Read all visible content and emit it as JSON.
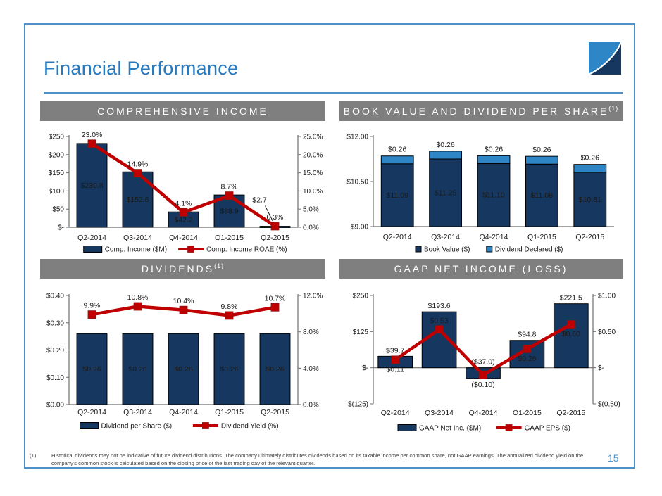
{
  "slide": {
    "title": "Financial Performance",
    "page_number": "15",
    "footnote_marker": "(1)",
    "footnote_text": "Historical dividends may not be indicative of future dividend distributions.  The company ultimately distributes dividends based on its taxable income per common share, not GAAP earnings. The annualized dividend yield on the company's common stock is calculated based on the closing price of the last trading day of the relevant quarter."
  },
  "colors": {
    "accent_blue": "#2879BE",
    "border_blue": "#4D91C8",
    "header_gray": "#7F7F7F",
    "navy": "#16375F",
    "light_blue": "#2E86C6",
    "red": "#C00000",
    "axis_gray": "#6e6e6e",
    "bar_label_white": "#F2F2F2"
  },
  "panels": [
    {
      "title": "COMPREHENSIVE INCOME",
      "superscript": ""
    },
    {
      "title": "BOOK VALUE AND DIVIDEND PER SHARE",
      "superscript": "(1)"
    },
    {
      "title": "DIVIDENDS",
      "superscript": "(1)"
    },
    {
      "title": "GAAP NET INCOME (LOSS)",
      "superscript": ""
    }
  ],
  "chart_data": [
    {
      "type": "bar-line",
      "title": "COMPREHENSIVE INCOME",
      "grid": false,
      "legend_position": "bottom",
      "categories": [
        "Q2-2014",
        "Q3-2014",
        "Q4-2014",
        "Q1-2015",
        "Q2-2015"
      ],
      "left_axis": {
        "min": 0,
        "max": 250,
        "ticks": [
          "$-",
          "$50",
          "$100",
          "$150",
          "$200",
          "$250"
        ]
      },
      "right_axis": {
        "min": 0,
        "max": 25,
        "ticks": [
          "0.0%",
          "5.0%",
          "10.0%",
          "15.0%",
          "20.0%",
          "25.0%"
        ]
      },
      "bars": {
        "name": "Comp. Income ($M)",
        "values": [
          230.8,
          152.6,
          42.2,
          88.9,
          2.7
        ],
        "labels": [
          "$230.8",
          "$152.6",
          "$42.2",
          "$88.9",
          "$2.7"
        ],
        "label_pos": [
          "inside",
          "inside",
          "inside",
          "inside",
          "callout"
        ]
      },
      "line": {
        "name": "Comp. Income ROAE (%)",
        "values": [
          23.0,
          14.9,
          4.1,
          8.7,
          0.3
        ],
        "labels": [
          "23.0%",
          "14.9%",
          "4.1%",
          "8.7%",
          "0.3%"
        ],
        "label_pos": [
          "above",
          "above",
          "above",
          "above",
          "above"
        ]
      }
    },
    {
      "type": "stacked-bar",
      "title": "BOOK VALUE AND DIVIDEND PER SHARE (1)",
      "grid": false,
      "legend_position": "bottom",
      "categories": [
        "Q2-2014",
        "Q3-2014",
        "Q4-2014",
        "Q1-2015",
        "Q2-2015"
      ],
      "left_axis": {
        "min": 9,
        "max": 12,
        "ticks": [
          "$9.00",
          "$10.50",
          "$12.00"
        ]
      },
      "stacks": [
        {
          "name": "Book Value ($)",
          "color_key": "navy",
          "values": [
            11.09,
            11.25,
            11.1,
            11.08,
            10.81
          ],
          "labels": [
            "$11.09",
            "$11.25",
            "$11.10",
            "$11.08",
            "$10.81"
          ],
          "label_pos": "inside"
        },
        {
          "name": "Dividend Declared ($)",
          "color_key": "light_blue",
          "values": [
            0.26,
            0.26,
            0.26,
            0.26,
            0.26
          ],
          "labels": [
            "$0.26",
            "$0.26",
            "$0.26",
            "$0.26",
            "$0.26"
          ],
          "label_pos": "above"
        }
      ]
    },
    {
      "type": "bar-line",
      "title": "DIVIDENDS (1)",
      "grid": false,
      "legend_position": "bottom",
      "categories": [
        "Q2-2014",
        "Q3-2014",
        "Q4-2014",
        "Q1-2015",
        "Q2-2015"
      ],
      "left_axis": {
        "min": 0,
        "max": 0.4,
        "ticks": [
          "$0.00",
          "$0.10",
          "$0.20",
          "$0.30",
          "$0.40"
        ]
      },
      "right_axis": {
        "min": 0,
        "max": 12,
        "ticks": [
          "0.0%",
          "4.0%",
          "8.0%",
          "12.0%"
        ]
      },
      "bars": {
        "name": "Dividend per Share ($)",
        "values": [
          0.26,
          0.26,
          0.26,
          0.26,
          0.26
        ],
        "labels": [
          "$0.26",
          "$0.26",
          "$0.26",
          "$0.26",
          "$0.26"
        ],
        "label_pos": [
          "inside",
          "inside",
          "inside",
          "inside",
          "inside"
        ]
      },
      "line": {
        "name": "Dividend Yield (%)",
        "values": [
          9.9,
          10.8,
          10.4,
          9.8,
          10.7
        ],
        "labels": [
          "9.9%",
          "10.8%",
          "10.4%",
          "9.8%",
          "10.7%"
        ],
        "label_pos": [
          "above",
          "above",
          "above",
          "above",
          "above"
        ]
      }
    },
    {
      "type": "bar-line",
      "title": "GAAP NET INCOME (LOSS)",
      "grid": false,
      "legend_position": "bottom",
      "categories": [
        "Q2-2014",
        "Q3-2014",
        "Q4-2014",
        "Q1-2015",
        "Q2-2015"
      ],
      "left_axis": {
        "min": -125,
        "max": 250,
        "ticks": [
          "$(125)",
          "$-",
          "$125",
          "$250"
        ]
      },
      "right_axis": {
        "min": -0.5,
        "max": 1.0,
        "ticks": [
          "$(0.50)",
          "$-",
          "$0.50",
          "$1.00"
        ]
      },
      "bars": {
        "name": "GAAP Net Inc. ($M)",
        "values": [
          39.7,
          193.6,
          -37.0,
          94.8,
          221.5
        ],
        "labels": [
          "$39.7",
          "$193.6",
          "($37.0)",
          "$94.8",
          "$221.5"
        ],
        "label_pos": [
          "above",
          "above",
          "above",
          "above",
          "above"
        ]
      },
      "line": {
        "name": "GAAP EPS ($)",
        "values": [
          0.11,
          0.53,
          -0.1,
          0.26,
          0.6
        ],
        "labels": [
          "$0.11",
          "$0.53",
          "($0.10)",
          "$0.26",
          "$0.60"
        ],
        "label_pos": [
          "below",
          "above",
          "below",
          "below",
          "below"
        ],
        "label_colors": [
          "#1a1a1a",
          "#F2F2F2",
          "#1a1a1a",
          "#F2F2F2",
          "#F2F2F2"
        ]
      }
    }
  ]
}
